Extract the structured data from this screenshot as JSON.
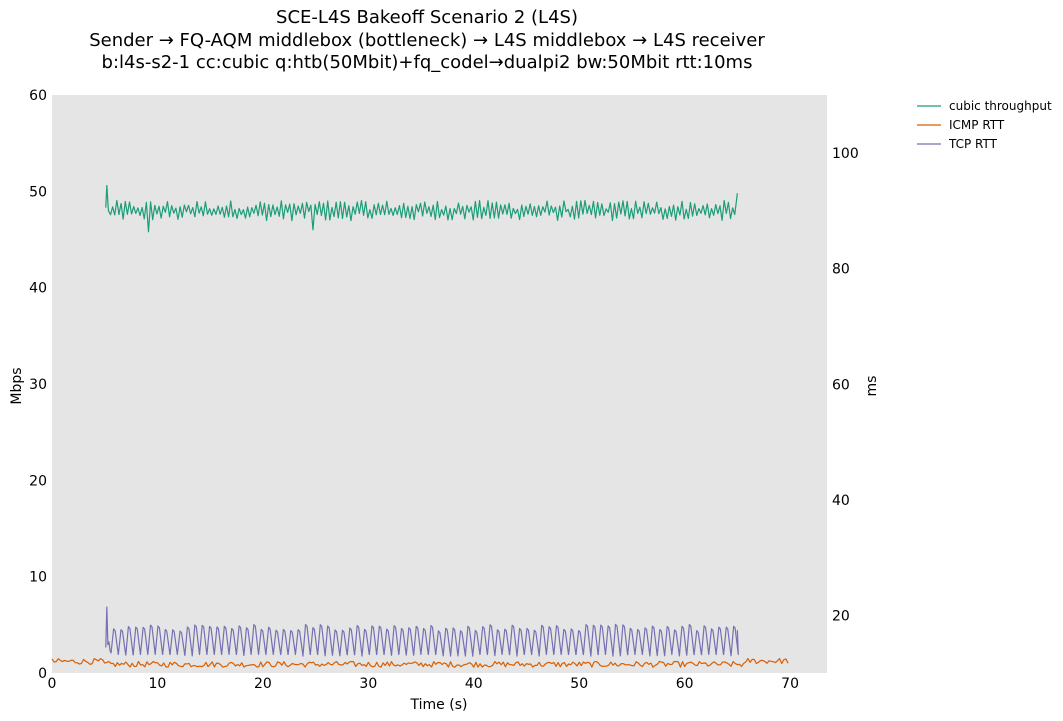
{
  "chart_data": {
    "type": "line",
    "title": [
      "SCE-L4S Bakeoff Scenario 2 (L4S)",
      "Sender → FQ-AQM middlebox (bottleneck) → L4S middlebox → L4S receiver",
      "b:l4s-s2-1 cc:cubic q:htb(50Mbit)+fq_codel→dualpi2 bw:50Mbit rtt:10ms"
    ],
    "xlabel": "Time (s)",
    "ylabel_left": "Mbps",
    "ylabel_right": "ms",
    "xlim": [
      0,
      73.5
    ],
    "ylim_left": [
      0,
      60
    ],
    "ylim_right": [
      10.1,
      110
    ],
    "xticks": [
      "0",
      "10",
      "20",
      "30",
      "40",
      "50",
      "60",
      "70"
    ],
    "yticks_left": [
      "0",
      "10",
      "20",
      "30",
      "40",
      "50",
      "60"
    ],
    "yticks_right": [
      "20",
      "40",
      "60",
      "80",
      "100"
    ],
    "grid": false,
    "legend_position": "outside-top-right",
    "series": [
      {
        "name": "cubic throughput",
        "axis": "left",
        "color": "#1b9e77",
        "x_range": [
          5.1,
          65.0
        ],
        "start_value": 50.6,
        "mean": 48.0,
        "amplitude": 0.8,
        "min": 45.8,
        "end_value": 49.8
      },
      {
        "name": "ICMP RTT",
        "axis": "left",
        "color": "#d95f02",
        "x_range": [
          0,
          70.0
        ],
        "mean": 0.9,
        "amplitude": 0.3,
        "max": 1.5
      },
      {
        "name": "TCP RTT",
        "axis": "right",
        "color": "#7570b3",
        "x_range": [
          5.1,
          65.0
        ],
        "start_value": 21.5,
        "sawtooth_min": 13.0,
        "sawtooth_max": 18.5,
        "sawtooth_period_s": 0.7
      }
    ]
  }
}
